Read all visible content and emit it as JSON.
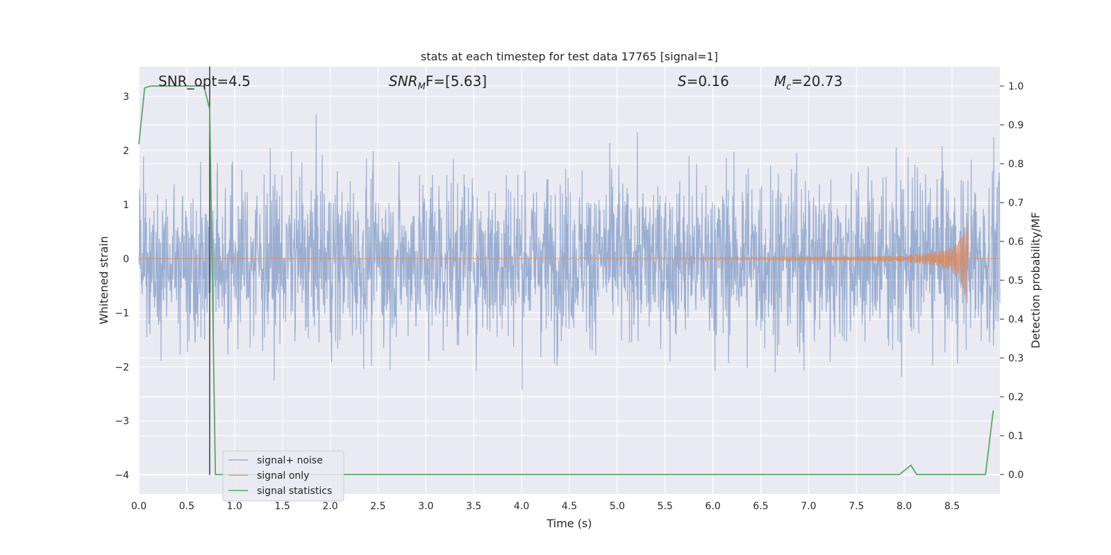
{
  "chart_data": {
    "type": "line",
    "title": "stats at each timestep for test data 17765 [signal=1]",
    "xlabel": "Time (s)",
    "ylabel": "Whitened strain",
    "ylabel_right": "Detection probability/MF",
    "xlim": [
      0.0,
      9.0
    ],
    "ylim": [
      -4.35,
      3.55
    ],
    "ylim_right": [
      -0.05,
      1.05
    ],
    "x_ticks": [
      "0.0",
      "0.5",
      "1.0",
      "1.5",
      "2.0",
      "2.5",
      "3.0",
      "3.5",
      "4.0",
      "4.5",
      "5.0",
      "5.5",
      "6.0",
      "6.5",
      "7.0",
      "7.5",
      "8.0",
      "8.5"
    ],
    "y_ticks": [
      "3",
      "2",
      "1",
      "0",
      "−1",
      "−2",
      "−3",
      "−4"
    ],
    "y_ticks_right": [
      "1.0",
      "0.9",
      "0.8",
      "0.7",
      "0.6",
      "0.5",
      "0.4",
      "0.3",
      "0.2",
      "0.1",
      "0.0"
    ],
    "grid": true,
    "legend_position": "lower-left",
    "annotations": {
      "snr_opt": "SNR_opt=4.5",
      "snr_mf_main": "SNR",
      "snr_mf_sub": "M",
      "snr_mf_rest": "F=[5.63]",
      "s_main": "S",
      "s_rest": "=0.16",
      "mc_main": "M",
      "mc_sub": "c",
      "mc_rest": "=20.73"
    },
    "vertical_marker_x": 0.74,
    "series": [
      {
        "name": "signal+ noise",
        "axis": "left",
        "color": "#4c72b0",
        "description": "whitened noisy strain, roughly within [-2.5, 2.5]",
        "amplitude_envelope": {
          "x": [
            0.0,
            1.0,
            2.0,
            3.0,
            4.0,
            4.5,
            5.0,
            6.0,
            7.0,
            8.0,
            8.9
          ],
          "typical": [
            1.7,
            1.7,
            1.7,
            1.7,
            1.7,
            1.6,
            1.7,
            1.7,
            1.7,
            1.7,
            1.7
          ]
        }
      },
      {
        "name": "signal only",
        "axis": "left",
        "color": "#dd8452",
        "description": "chirp signal growing near merger",
        "envelope": {
          "x": [
            0.0,
            4.0,
            6.0,
            7.5,
            8.0,
            8.3,
            8.5,
            8.6,
            8.65,
            8.67
          ],
          "upper": [
            0.0,
            0.01,
            0.02,
            0.04,
            0.07,
            0.12,
            0.22,
            0.4,
            0.6,
            0.75
          ],
          "lower": [
            0.0,
            -0.01,
            -0.02,
            -0.04,
            -0.07,
            -0.12,
            -0.25,
            -0.5,
            -0.8,
            -0.9
          ]
        },
        "end_x": 8.67
      },
      {
        "name": "signal statistics",
        "axis": "right",
        "color": "#55a868",
        "x": [
          0.0,
          0.06,
          0.12,
          0.2,
          0.4,
          0.6,
          0.68,
          0.74,
          0.8,
          1.0,
          2.0,
          3.0,
          4.0,
          5.0,
          6.0,
          7.0,
          7.5,
          7.95,
          8.07,
          8.13,
          8.2,
          8.5,
          8.85,
          8.93
        ],
        "y": [
          0.85,
          0.995,
          1.0,
          1.0,
          1.0,
          1.0,
          1.0,
          0.94,
          0.0,
          0.0,
          0.0,
          0.0,
          0.0,
          0.0,
          0.0,
          0.0,
          0.0,
          0.0,
          0.024,
          0.0,
          0.0,
          0.0,
          0.0,
          0.165
        ]
      }
    ]
  }
}
